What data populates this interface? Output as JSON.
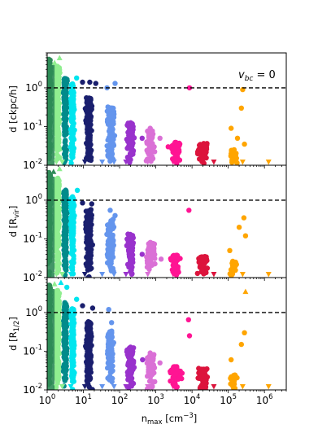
{
  "chart_data": {
    "type": "scatter",
    "xscale": "log",
    "yscale": "log",
    "xlim": [
      1,
      4000000
    ],
    "ylim": [
      0.01,
      8
    ],
    "xlabel": "n_max [cm^-3]",
    "x_ticks": [
      1,
      10,
      100,
      1000,
      10000,
      100000,
      1000000
    ],
    "y_ticks": [
      0.01,
      0.1,
      1
    ],
    "threshold": 1,
    "annotation": "v_bc = 0",
    "cluster_colors": [
      "#2e8b57",
      "#90ee90",
      "#008b8b",
      "#00e5ee",
      "#1a1f6e",
      "#6495ed",
      "#9932cc",
      "#da70d6",
      "#ff1493",
      "#dc143c",
      "#ffa500"
    ],
    "panels": [
      {
        "ylabel": "d [ckpc/h]",
        "highlights": [
          {
            "x": 9.5,
            "y": 1.4,
            "c": 4
          },
          {
            "x": 15,
            "y": 1.4,
            "c": 4
          },
          {
            "x": 22,
            "y": 1.3,
            "c": 4
          },
          {
            "x": 6.5,
            "y": 1.8,
            "c": 3
          },
          {
            "x": 45,
            "y": 1.0,
            "c": 5
          },
          {
            "x": 75,
            "y": 1.3,
            "c": 5
          },
          {
            "x": 8500,
            "y": 1.0,
            "c": 8
          },
          {
            "x": 250000,
            "y": 0.9,
            "c": 10
          },
          {
            "x": 230000,
            "y": 0.3,
            "c": 10
          },
          {
            "x": 120000,
            "y": 0.09,
            "c": 10
          },
          {
            "x": 180000,
            "y": 0.05,
            "c": 10
          },
          {
            "x": 280000,
            "y": 0.035,
            "c": 10
          },
          {
            "x": 1300,
            "y": 0.05,
            "c": 7
          },
          {
            "x": 700,
            "y": 0.09,
            "c": 7
          },
          {
            "x": 420,
            "y": 0.05,
            "c": 6
          },
          {
            "x": 900,
            "y": 0.03,
            "c": 7
          },
          {
            "x": 2200,
            "y": 0.03,
            "c": 8
          }
        ],
        "triangles_up": [
          {
            "x": 2.2,
            "y": 6.0,
            "c": 1
          },
          {
            "x": 1.6,
            "y": 4.5,
            "c": 1
          }
        ],
        "triangles_down": [
          {
            "x": 1.8,
            "y": 0.011,
            "c": 1
          },
          {
            "x": 2.6,
            "y": 0.011,
            "c": 1
          },
          {
            "x": 4.5,
            "y": 0.011,
            "c": 3
          },
          {
            "x": 11,
            "y": 0.011,
            "c": 4
          },
          {
            "x": 33,
            "y": 0.011,
            "c": 5
          },
          {
            "x": 70,
            "y": 0.011,
            "c": 5
          },
          {
            "x": 150,
            "y": 0.011,
            "c": 6
          },
          {
            "x": 600,
            "y": 0.011,
            "c": 7
          },
          {
            "x": 3000,
            "y": 0.011,
            "c": 8
          },
          {
            "x": 40000,
            "y": 0.011,
            "c": 9
          },
          {
            "x": 250000,
            "y": 0.011,
            "c": 10
          },
          {
            "x": 1300000,
            "y": 0.011,
            "c": 10
          }
        ]
      },
      {
        "ylabel": "d [R_vir]",
        "highlights": [
          {
            "x": 6.8,
            "y": 1.8,
            "c": 3
          },
          {
            "x": 9.5,
            "y": 0.85,
            "c": 4
          },
          {
            "x": 17,
            "y": 0.8,
            "c": 4
          },
          {
            "x": 55,
            "y": 0.55,
            "c": 5
          },
          {
            "x": 75,
            "y": 0.4,
            "c": 5
          },
          {
            "x": 8200,
            "y": 0.55,
            "c": 8
          },
          {
            "x": 270000,
            "y": 0.35,
            "c": 10
          },
          {
            "x": 200000,
            "y": 0.2,
            "c": 10
          },
          {
            "x": 300000,
            "y": 0.12,
            "c": 10
          },
          {
            "x": 110000,
            "y": 0.05,
            "c": 10
          },
          {
            "x": 160000,
            "y": 0.025,
            "c": 10
          },
          {
            "x": 650,
            "y": 0.05,
            "c": 7
          },
          {
            "x": 1400,
            "y": 0.03,
            "c": 7
          },
          {
            "x": 420,
            "y": 0.04,
            "c": 6
          }
        ],
        "triangles_up": [
          {
            "x": 2.2,
            "y": 6.5,
            "c": 1
          },
          {
            "x": 1.5,
            "y": 5.5,
            "c": 0
          }
        ],
        "triangles_down": [
          {
            "x": 1.8,
            "y": 0.011,
            "c": 1
          },
          {
            "x": 2.6,
            "y": 0.011,
            "c": 1
          },
          {
            "x": 4.5,
            "y": 0.011,
            "c": 3
          },
          {
            "x": 11,
            "y": 0.011,
            "c": 4
          },
          {
            "x": 33,
            "y": 0.011,
            "c": 5
          },
          {
            "x": 70,
            "y": 0.011,
            "c": 5
          },
          {
            "x": 150,
            "y": 0.011,
            "c": 6
          },
          {
            "x": 600,
            "y": 0.011,
            "c": 7
          },
          {
            "x": 3000,
            "y": 0.011,
            "c": 8
          },
          {
            "x": 40000,
            "y": 0.011,
            "c": 9
          },
          {
            "x": 250000,
            "y": 0.011,
            "c": 10
          },
          {
            "x": 1300000,
            "y": 0.011,
            "c": 10
          }
        ]
      },
      {
        "ylabel": "d [R_1/2]",
        "highlights": [
          {
            "x": 6.5,
            "y": 2.2,
            "c": 3
          },
          {
            "x": 3.5,
            "y": 4.5,
            "c": 3
          },
          {
            "x": 9.5,
            "y": 1.5,
            "c": 4
          },
          {
            "x": 18,
            "y": 1.3,
            "c": 4
          },
          {
            "x": 50,
            "y": 1.2,
            "c": 5
          },
          {
            "x": 60,
            "y": 0.55,
            "c": 5
          },
          {
            "x": 8000,
            "y": 0.65,
            "c": 8
          },
          {
            "x": 8500,
            "y": 0.25,
            "c": 8
          },
          {
            "x": 280000,
            "y": 0.3,
            "c": 10
          },
          {
            "x": 230000,
            "y": 0.15,
            "c": 10
          },
          {
            "x": 120000,
            "y": 0.06,
            "c": 10
          },
          {
            "x": 700,
            "y": 0.09,
            "c": 7
          },
          {
            "x": 1300,
            "y": 0.05,
            "c": 7
          },
          {
            "x": 430,
            "y": 0.06,
            "c": 6
          },
          {
            "x": 2500,
            "y": 0.03,
            "c": 8
          }
        ],
        "triangles_up": [
          {
            "x": 2.4,
            "y": 6.0,
            "c": 3
          },
          {
            "x": 1.6,
            "y": 5.5,
            "c": 1
          },
          {
            "x": 300000,
            "y": 3.5,
            "c": 10
          }
        ],
        "triangles_down": [
          {
            "x": 1.8,
            "y": 0.011,
            "c": 1
          },
          {
            "x": 2.6,
            "y": 0.011,
            "c": 1
          },
          {
            "x": 4.5,
            "y": 0.011,
            "c": 3
          },
          {
            "x": 11,
            "y": 0.011,
            "c": 4
          },
          {
            "x": 33,
            "y": 0.011,
            "c": 5
          },
          {
            "x": 70,
            "y": 0.011,
            "c": 5
          },
          {
            "x": 150,
            "y": 0.011,
            "c": 6
          },
          {
            "x": 600,
            "y": 0.011,
            "c": 7
          },
          {
            "x": 3000,
            "y": 0.011,
            "c": 8
          },
          {
            "x": 40000,
            "y": 0.011,
            "c": 9
          },
          {
            "x": 250000,
            "y": 0.011,
            "c": 10
          },
          {
            "x": 1300000,
            "y": 0.011,
            "c": 10
          }
        ]
      }
    ]
  }
}
